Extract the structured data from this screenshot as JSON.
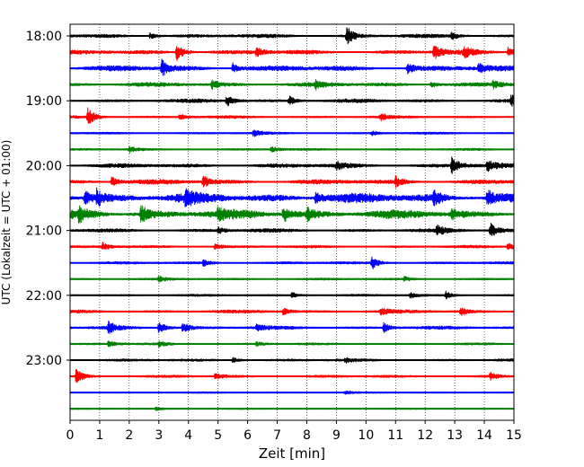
{
  "chart_data": {
    "type": "line",
    "title": "",
    "xlabel": "Zeit  [min]",
    "ylabel": "UTC (Lokalzeit = UTC + 01:00)",
    "xlim": [
      0,
      15
    ],
    "x_ticks": [
      "0",
      "1",
      "2",
      "3",
      "4",
      "5",
      "6",
      "7",
      "8",
      "9",
      "10",
      "11",
      "12",
      "13",
      "14",
      "15"
    ],
    "y_tick_labels": [
      "18:00",
      "19:00",
      "20:00",
      "21:00",
      "22:00",
      "23:00"
    ],
    "grid": "vertical dotted",
    "line_colors": [
      "#000000",
      "#ff0000",
      "#0000ff",
      "#008000"
    ],
    "traces": [
      {
        "start": "18:00",
        "color": "#000000",
        "amplitude": 0.35,
        "events": [
          {
            "t": 2.7,
            "a": 0.5
          },
          {
            "t": 9.35,
            "a": 1.6
          },
          {
            "t": 12.9,
            "a": 0.6
          }
        ]
      },
      {
        "start": "18:15",
        "color": "#ff0000",
        "amplitude": 0.4,
        "events": [
          {
            "t": 3.6,
            "a": 1.5
          },
          {
            "t": 6.3,
            "a": 0.7
          },
          {
            "t": 12.3,
            "a": 1.2
          },
          {
            "t": 13.3,
            "a": 0.9
          },
          {
            "t": 14.8,
            "a": 0.8
          }
        ]
      },
      {
        "start": "18:30",
        "color": "#0000ff",
        "amplitude": 0.5,
        "events": [
          {
            "t": 3.1,
            "a": 1.4
          },
          {
            "t": 5.5,
            "a": 0.9
          },
          {
            "t": 11.4,
            "a": 0.9
          },
          {
            "t": 13.8,
            "a": 0.7
          }
        ]
      },
      {
        "start": "18:45",
        "color": "#008000",
        "amplitude": 0.4,
        "events": [
          {
            "t": 4.8,
            "a": 0.7
          },
          {
            "t": 8.3,
            "a": 0.6
          },
          {
            "t": 12.2,
            "a": 0.5
          },
          {
            "t": 14.3,
            "a": 0.6
          }
        ]
      },
      {
        "start": "19:00",
        "color": "#000000",
        "amplitude": 0.35,
        "events": [
          {
            "t": 5.3,
            "a": 0.9
          },
          {
            "t": 7.4,
            "a": 0.8
          },
          {
            "t": 14.9,
            "a": 0.9
          }
        ]
      },
      {
        "start": "19:15",
        "color": "#ff0000",
        "amplitude": 0.25,
        "events": [
          {
            "t": 0.6,
            "a": 1.6
          },
          {
            "t": 3.7,
            "a": 0.5
          },
          {
            "t": 10.5,
            "a": 0.5
          }
        ]
      },
      {
        "start": "19:30",
        "color": "#0000ff",
        "amplitude": 0.2,
        "events": [
          {
            "t": 6.2,
            "a": 0.5
          },
          {
            "t": 10.2,
            "a": 0.4
          }
        ]
      },
      {
        "start": "19:45",
        "color": "#008000",
        "amplitude": 0.2,
        "events": [
          {
            "t": 2.0,
            "a": 0.5
          },
          {
            "t": 6.8,
            "a": 0.5
          }
        ]
      },
      {
        "start": "20:00",
        "color": "#000000",
        "amplitude": 0.4,
        "events": [
          {
            "t": 9.0,
            "a": 0.6
          },
          {
            "t": 12.9,
            "a": 1.4
          },
          {
            "t": 14.1,
            "a": 0.9
          }
        ]
      },
      {
        "start": "20:15",
        "color": "#ff0000",
        "amplitude": 0.45,
        "events": [
          {
            "t": 1.4,
            "a": 0.8
          },
          {
            "t": 4.5,
            "a": 1.1
          },
          {
            "t": 11.0,
            "a": 0.8
          }
        ]
      },
      {
        "start": "20:30",
        "color": "#0000ff",
        "amplitude": 0.9,
        "events": [
          {
            "t": 0.5,
            "a": 1.2
          },
          {
            "t": 0.9,
            "a": 1.3
          },
          {
            "t": 3.9,
            "a": 1.0
          },
          {
            "t": 8.3,
            "a": 1.0
          },
          {
            "t": 12.3,
            "a": 0.9
          },
          {
            "t": 14.1,
            "a": 1.5
          }
        ]
      },
      {
        "start": "20:45",
        "color": "#008000",
        "amplitude": 0.8,
        "events": [
          {
            "t": 0.3,
            "a": 1.1
          },
          {
            "t": 2.4,
            "a": 1.5
          },
          {
            "t": 5.0,
            "a": 0.8
          },
          {
            "t": 7.2,
            "a": 1.4
          },
          {
            "t": 8.0,
            "a": 1.0
          },
          {
            "t": 12.9,
            "a": 0.7
          }
        ]
      },
      {
        "start": "21:00",
        "color": "#000000",
        "amplitude": 0.35,
        "events": [
          {
            "t": 5.0,
            "a": 0.5
          },
          {
            "t": 12.4,
            "a": 0.7
          },
          {
            "t": 14.2,
            "a": 1.3
          }
        ]
      },
      {
        "start": "21:15",
        "color": "#ff0000",
        "amplitude": 0.25,
        "events": [
          {
            "t": 1.1,
            "a": 0.6
          },
          {
            "t": 4.9,
            "a": 0.5
          },
          {
            "t": 14.8,
            "a": 0.6
          }
        ]
      },
      {
        "start": "21:30",
        "color": "#0000ff",
        "amplitude": 0.25,
        "events": [
          {
            "t": 10.2,
            "a": 1.1
          },
          {
            "t": 4.5,
            "a": 0.5
          }
        ]
      },
      {
        "start": "21:45",
        "color": "#008000",
        "amplitude": 0.2,
        "events": [
          {
            "t": 3.0,
            "a": 0.4
          },
          {
            "t": 11.3,
            "a": 0.4
          }
        ]
      },
      {
        "start": "22:00",
        "color": "#000000",
        "amplitude": 0.2,
        "events": [
          {
            "t": 7.5,
            "a": 0.5
          },
          {
            "t": 11.5,
            "a": 0.5
          },
          {
            "t": 12.7,
            "a": 0.6
          }
        ]
      },
      {
        "start": "22:15",
        "color": "#ff0000",
        "amplitude": 0.3,
        "events": [
          {
            "t": 7.2,
            "a": 0.6
          },
          {
            "t": 10.5,
            "a": 0.6
          },
          {
            "t": 13.2,
            "a": 0.6
          }
        ]
      },
      {
        "start": "22:30",
        "color": "#0000ff",
        "amplitude": 0.3,
        "events": [
          {
            "t": 1.3,
            "a": 1.0
          },
          {
            "t": 3.0,
            "a": 1.1
          },
          {
            "t": 3.8,
            "a": 0.9
          },
          {
            "t": 6.3,
            "a": 0.6
          },
          {
            "t": 10.6,
            "a": 0.8
          }
        ]
      },
      {
        "start": "22:45",
        "color": "#008000",
        "amplitude": 0.2,
        "events": [
          {
            "t": 1.3,
            "a": 0.6
          },
          {
            "t": 3.0,
            "a": 0.5
          },
          {
            "t": 6.3,
            "a": 0.4
          }
        ]
      },
      {
        "start": "23:00",
        "color": "#000000",
        "amplitude": 0.25,
        "events": [
          {
            "t": 5.5,
            "a": 0.5
          },
          {
            "t": 9.3,
            "a": 0.4
          }
        ]
      },
      {
        "start": "23:15",
        "color": "#ff0000",
        "amplitude": 0.25,
        "events": [
          {
            "t": 0.2,
            "a": 1.2
          },
          {
            "t": 4.9,
            "a": 0.5
          },
          {
            "t": 14.2,
            "a": 0.6
          }
        ]
      },
      {
        "start": "23:30",
        "color": "#0000ff",
        "amplitude": 0.15,
        "events": [
          {
            "t": 9.3,
            "a": 0.3
          }
        ]
      },
      {
        "start": "23:45",
        "color": "#008000",
        "amplitude": 0.12,
        "events": [
          {
            "t": 2.9,
            "a": 0.3
          }
        ]
      }
    ]
  }
}
